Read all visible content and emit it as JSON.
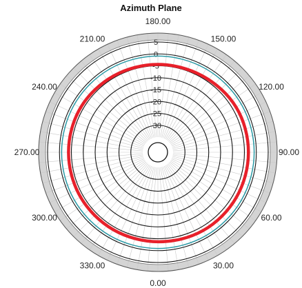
{
  "chart_data": {
    "type": "polar",
    "title": "Azimuth Plane",
    "angle_labels": [
      "180.00",
      "150.00",
      "120.00",
      "90.00",
      "60.00",
      "30.00",
      "0.00",
      "330.00",
      "300.00",
      "270.00",
      "240.00",
      "210.00"
    ],
    "angles_deg": [
      180,
      150,
      120,
      90,
      60,
      30,
      0,
      330,
      300,
      270,
      240,
      210
    ],
    "radial_tick_labels": [
      "5",
      "0",
      "-5",
      "-10",
      "-15",
      "-20",
      "-25",
      "-30"
    ],
    "radial_ticks": [
      5,
      0,
      -5,
      -10,
      -15,
      -20,
      -25,
      -30
    ],
    "rlim": [
      -35,
      5
    ],
    "grid": true,
    "series": [
      {
        "color": "#e8202a",
        "angles": [
          0,
          30,
          60,
          90,
          120,
          150,
          180,
          210,
          240,
          270,
          300,
          330
        ],
        "values": [
          -2.5,
          -2,
          -2,
          -2,
          -2,
          -3,
          -3.2,
          -3,
          -2.5,
          -2.5,
          -2.5,
          -2.5
        ]
      },
      {
        "color": "#2a9aa6",
        "angles": [
          0,
          30,
          60,
          90,
          120,
          150,
          180,
          210,
          240,
          270,
          300,
          330
        ],
        "values": [
          0.5,
          0.5,
          0.5,
          0.5,
          0.5,
          0.5,
          0.5,
          0.5,
          0.5,
          0.5,
          0.5,
          0.5
        ]
      }
    ]
  }
}
